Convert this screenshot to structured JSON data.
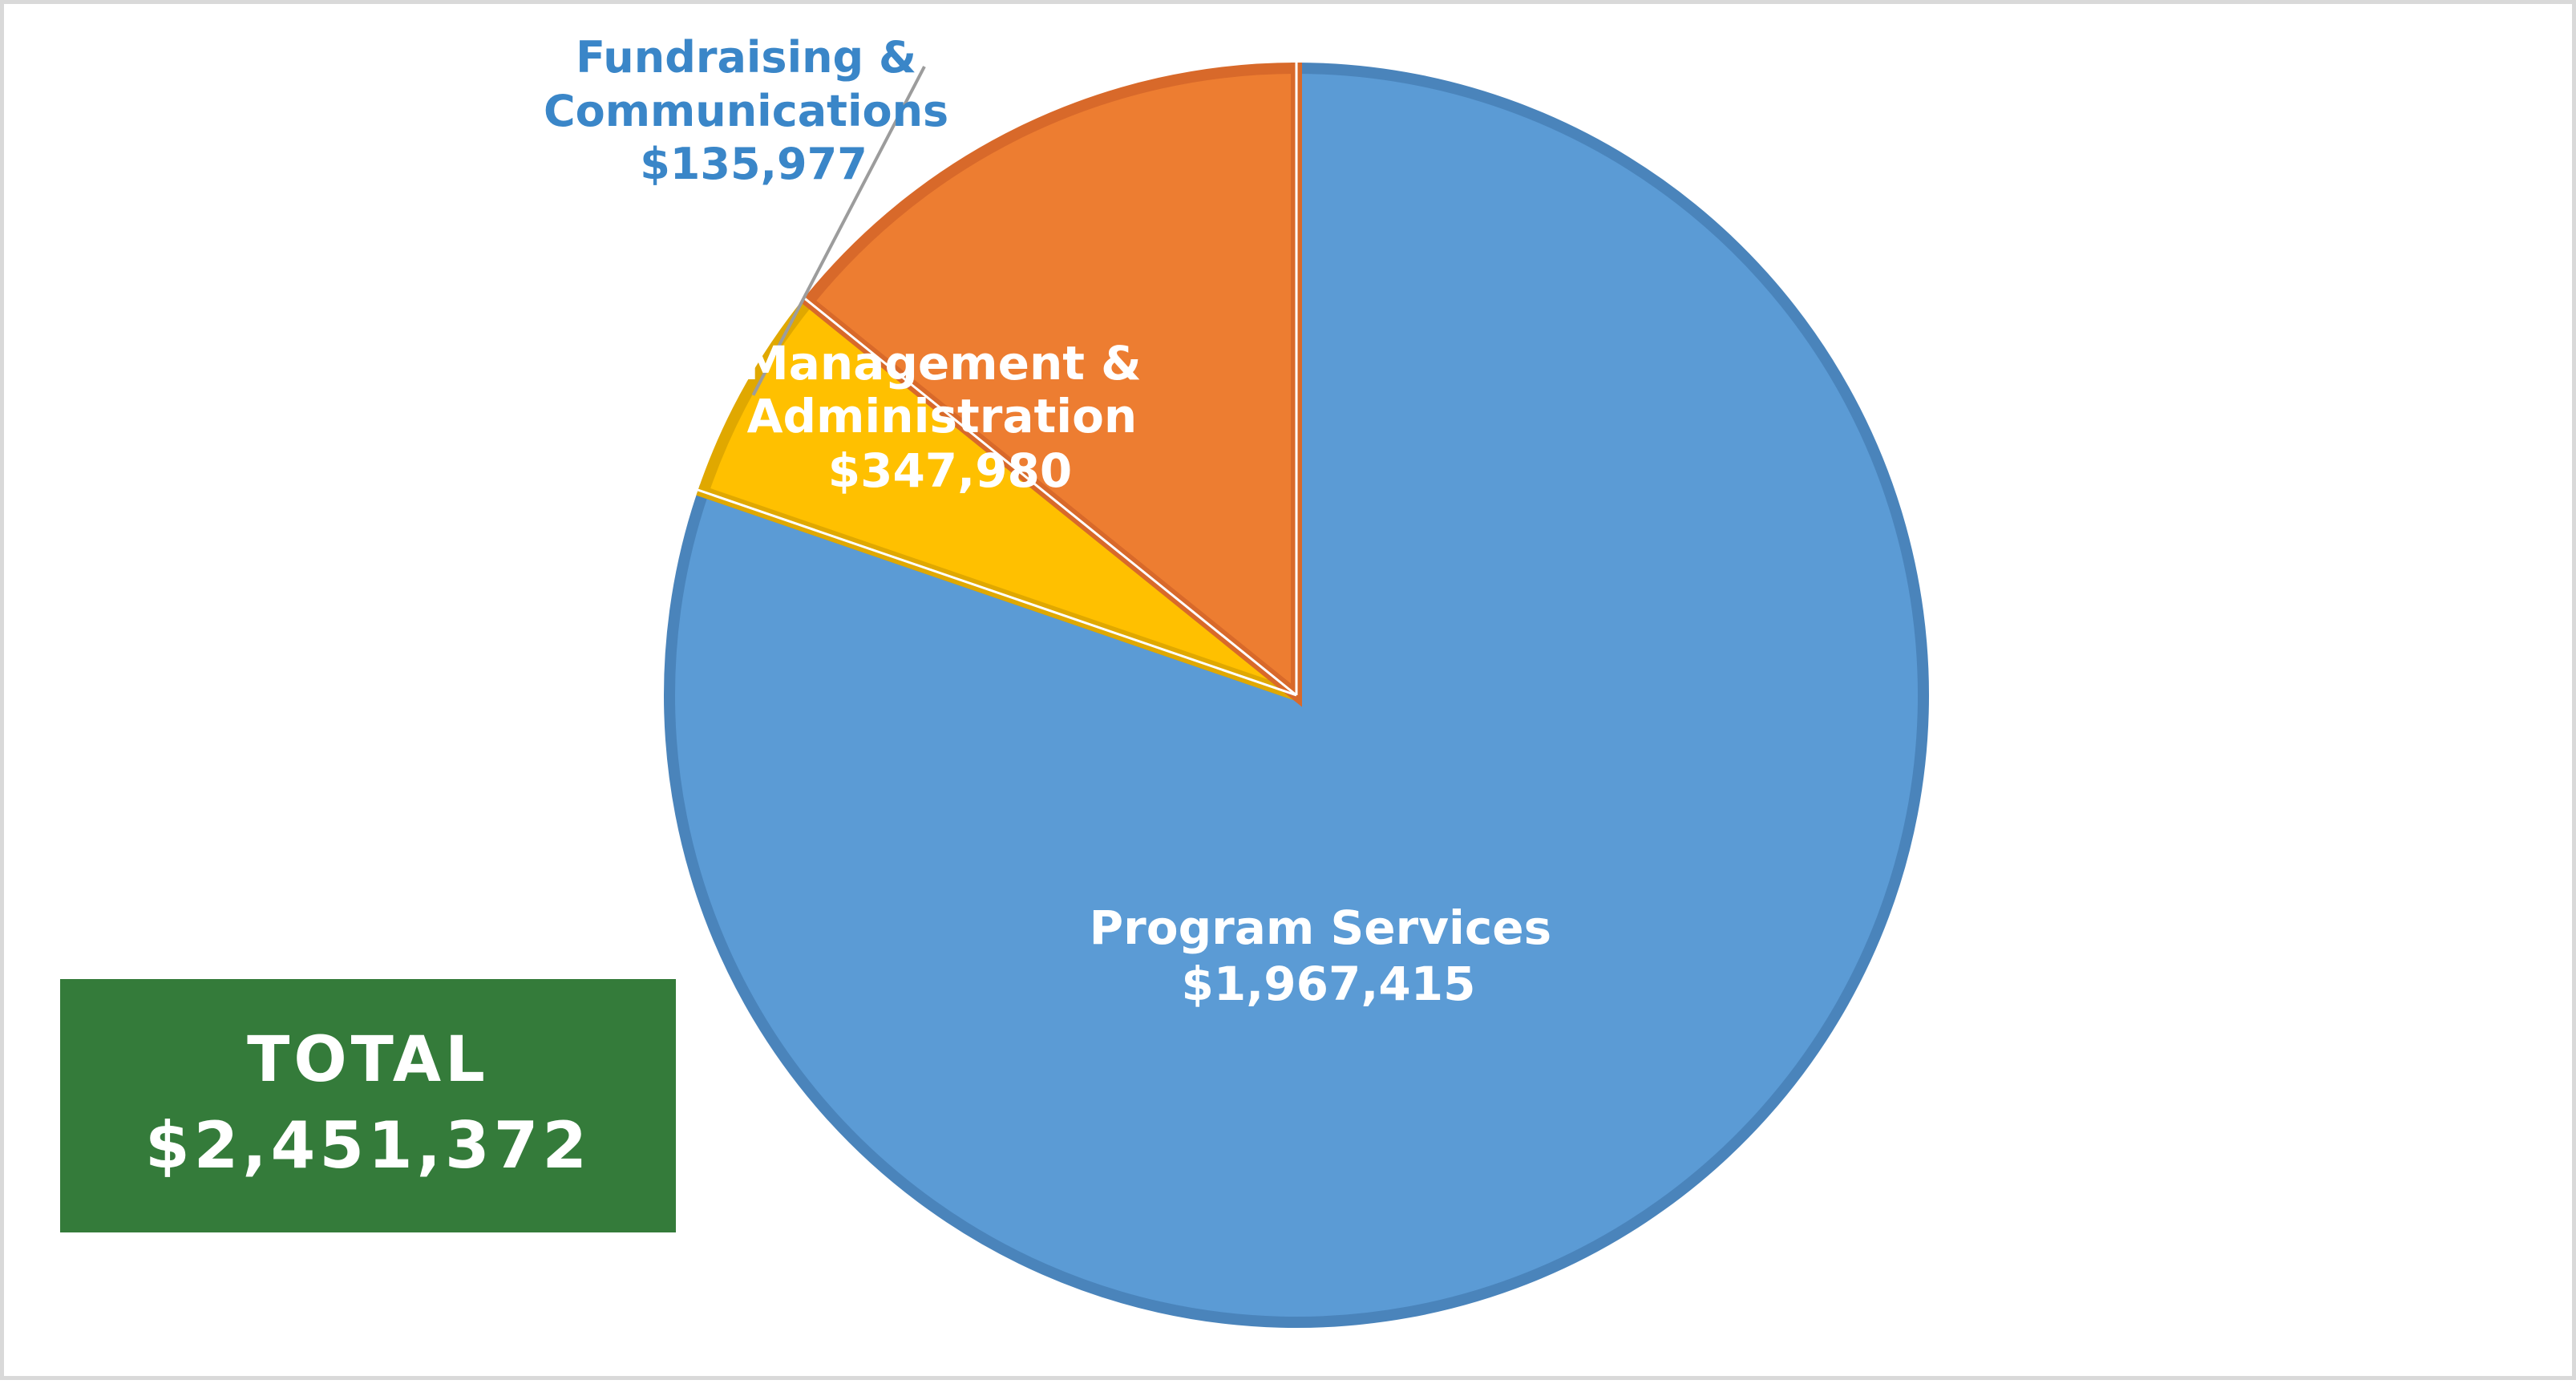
{
  "chart_data": {
    "type": "pie",
    "title": "",
    "slices": [
      {
        "name": "Program Services",
        "value": 1967415,
        "value_label": "$1,967,415",
        "color": "#5b9bd5",
        "edge_color": "#4a84bb"
      },
      {
        "name": "Fundraising & Communications",
        "name_lines": [
          "Fundraising &",
          "Communications"
        ],
        "value": 135977,
        "value_label": "$135,977",
        "color": "#ffc000",
        "edge_color": "#e0a800",
        "label_color": "#3a86c8"
      },
      {
        "name": "Management & Administration",
        "name_lines": [
          "Management &",
          "Administration"
        ],
        "value": 347980,
        "value_label": "$347,980",
        "color": "#ed7d31",
        "edge_color": "#d8692a"
      }
    ],
    "start_angle": "12 o'clock",
    "direction": "clockwise",
    "legend": "none"
  },
  "total": {
    "label": "TOTAL",
    "value": "$2,451,372",
    "background": "#347b3a"
  }
}
